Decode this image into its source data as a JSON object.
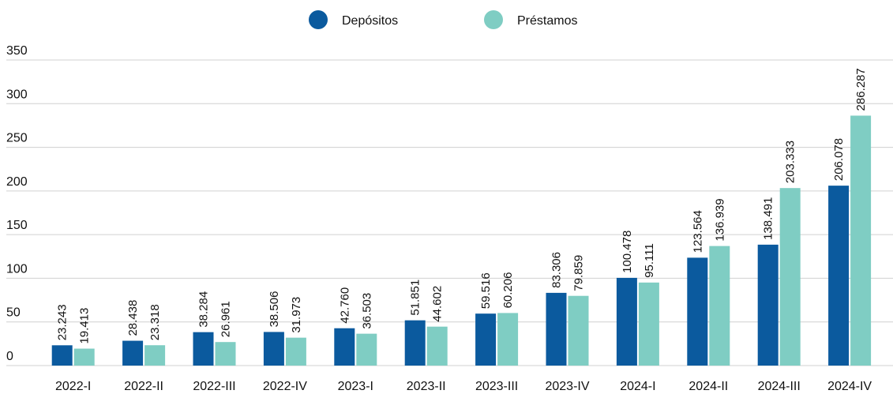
{
  "chart_data": {
    "type": "bar",
    "categories": [
      "2022-I",
      "2022-II",
      "2022-III",
      "2022-IV",
      "2023-I",
      "2023-II",
      "2023-III",
      "2023-IV",
      "2024-I",
      "2024-II",
      "2024-III",
      "2024-IV"
    ],
    "series": [
      {
        "name": "Depósitos",
        "color": "#0b5a9e",
        "values": [
          23.243,
          28.438,
          38.284,
          38.506,
          42.76,
          51.851,
          59.516,
          83.306,
          100.478,
          123.564,
          138.491,
          206.078
        ],
        "value_labels": [
          "23.243",
          "28.438",
          "38.284",
          "38.506",
          "42.760",
          "51.851",
          "59.516",
          "83.306",
          "100.478",
          "123.564",
          "138.491",
          "206.078"
        ]
      },
      {
        "name": "Préstamos",
        "color": "#7fcdc3",
        "values": [
          19.413,
          23.318,
          26.961,
          31.973,
          36.503,
          44.602,
          60.206,
          79.859,
          95.111,
          136.939,
          203.333,
          286.287
        ],
        "value_labels": [
          "19.413",
          "23.318",
          "26.961",
          "31.973",
          "36.503",
          "44.602",
          "60.206",
          "79.859",
          "95.111",
          "136.939",
          "203.333",
          "286.287"
        ]
      }
    ],
    "ylim": [
      0,
      350
    ],
    "yticks": [
      0,
      50,
      100,
      150,
      200,
      250,
      300,
      350
    ],
    "grid": true,
    "legend": "top"
  }
}
